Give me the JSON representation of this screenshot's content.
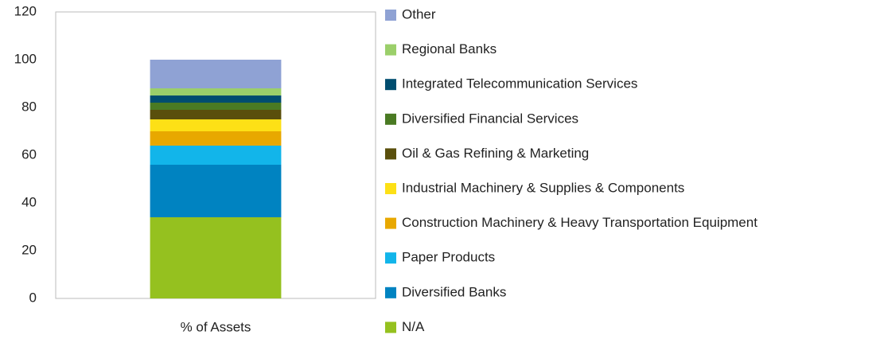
{
  "chart_data": {
    "type": "stacked_bar",
    "categories": [
      "% of Assets"
    ],
    "series": [
      {
        "name": "N/A",
        "color": "#95c11f",
        "values": [
          34
        ]
      },
      {
        "name": "Diversified Banks",
        "color": "#0083c1",
        "values": [
          22
        ]
      },
      {
        "name": "Paper Products",
        "color": "#12b5ea",
        "values": [
          8
        ]
      },
      {
        "name": "Construction Machinery & Heavy Transportation Equipment",
        "color": "#e8a800",
        "values": [
          6
        ]
      },
      {
        "name": "Industrial Machinery & Supplies & Components",
        "color": "#fde016",
        "values": [
          5
        ]
      },
      {
        "name": "Oil & Gas Refining & Marketing",
        "color": "#5a4f0c",
        "values": [
          4
        ]
      },
      {
        "name": "Diversified Financial Services",
        "color": "#4a7a23",
        "values": [
          3
        ]
      },
      {
        "name": "Integrated Telecommunication Services",
        "color": "#004d6f",
        "values": [
          3
        ]
      },
      {
        "name": "Regional Banks",
        "color": "#9bcf6a",
        "values": [
          3
        ]
      },
      {
        "name": "Other",
        "color": "#8fa2d4",
        "values": [
          12
        ]
      }
    ],
    "ylim": [
      0,
      120
    ],
    "yticks": [
      0,
      20,
      40,
      60,
      80,
      100,
      120
    ],
    "grid": false,
    "legend": "right"
  }
}
